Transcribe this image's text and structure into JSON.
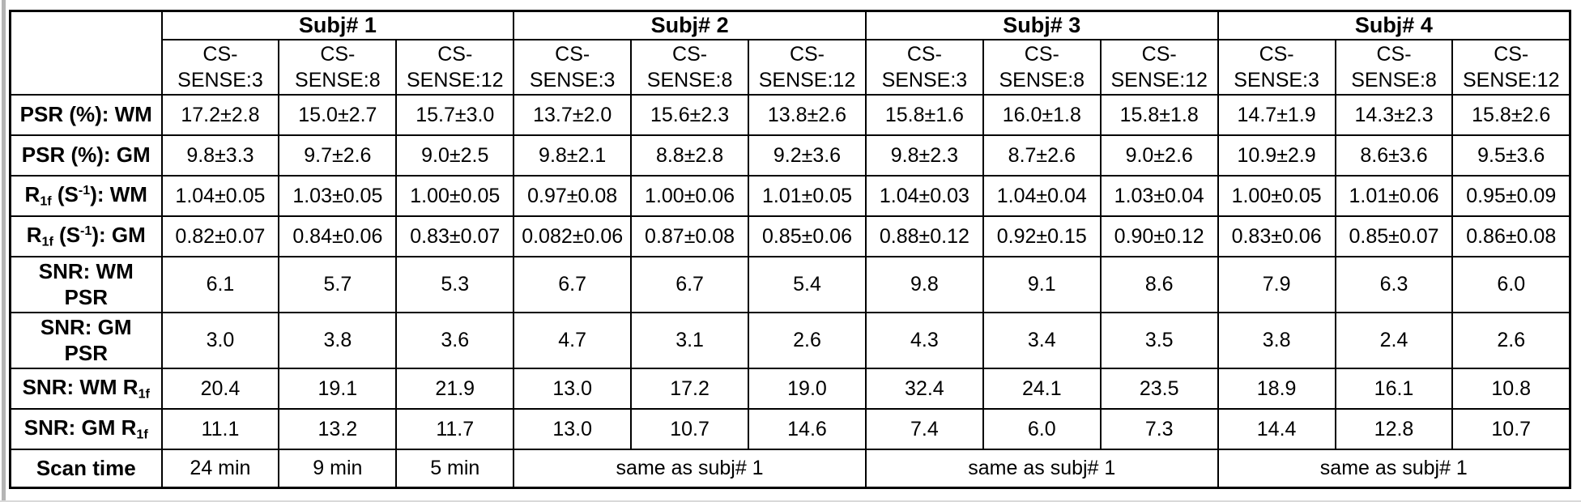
{
  "page": {
    "background_color": "#ffffff",
    "left_edge_color": "#b4b4b4",
    "bottom_edge_color": "#d9d9d9",
    "border_color": "#000000",
    "text_color": "#000000"
  },
  "table": {
    "corner_label": "",
    "subjects": [
      {
        "name": "Subj# 1",
        "columns": [
          "CS-SENSE:3",
          "CS-SENSE:8",
          "CS-SENSE:12"
        ]
      },
      {
        "name": "Subj# 2",
        "columns": [
          "CS-SENSE:3",
          "CS-SENSE:8",
          "CS-SENSE:12"
        ]
      },
      {
        "name": "Subj# 3",
        "columns": [
          "CS-SENSE:3",
          "CS-SENSE:8",
          "CS-SENSE:12"
        ]
      },
      {
        "name": "Subj# 4",
        "columns": [
          "CS-SENSE:3",
          "CS-SENSE:8",
          "CS-SENSE:12"
        ]
      }
    ],
    "rows": [
      {
        "id": "psr-wm",
        "label": [
          {
            "t": "PSR (%): WM"
          }
        ],
        "tall": false,
        "values": [
          "17.2±2.8",
          "15.0±2.7",
          "15.7±3.0",
          "13.7±2.0",
          "15.6±2.3",
          "13.8±2.6",
          "15.8±1.6",
          "16.0±1.8",
          "15.8±1.8",
          "14.7±1.9",
          "14.3±2.3",
          "15.8±2.6"
        ]
      },
      {
        "id": "psr-gm",
        "label": [
          {
            "t": "PSR (%): GM"
          }
        ],
        "tall": false,
        "values": [
          "9.8±3.3",
          "9.7±2.6",
          "9.0±2.5",
          "9.8±2.1",
          "8.8±2.8",
          "9.2±3.6",
          "9.8±2.3",
          "8.7±2.6",
          "9.0±2.6",
          "10.9±2.9",
          "8.6±3.6",
          "9.5±3.6"
        ]
      },
      {
        "id": "r1f-wm",
        "label": [
          {
            "t": "R"
          },
          {
            "t": "1f",
            "style": "sub"
          },
          {
            "t": " (S"
          },
          {
            "t": "-1",
            "style": "sup"
          },
          {
            "t": "): WM"
          }
        ],
        "tall": false,
        "values": [
          "1.04±0.05",
          "1.03±0.05",
          "1.00±0.05",
          "0.97±0.08",
          "1.00±0.06",
          "1.01±0.05",
          "1.04±0.03",
          "1.04±0.04",
          "1.03±0.04",
          "1.00±0.05",
          "1.01±0.06",
          "0.95±0.09"
        ]
      },
      {
        "id": "r1f-gm",
        "label": [
          {
            "t": "R"
          },
          {
            "t": "1f",
            "style": "sub"
          },
          {
            "t": " (S"
          },
          {
            "t": "-1",
            "style": "sup"
          },
          {
            "t": "): GM"
          }
        ],
        "tall": false,
        "values": [
          "0.82±0.07",
          "0.84±0.06",
          "0.83±0.07",
          "0.082±0.06",
          "0.87±0.08",
          "0.85±0.06",
          "0.88±0.12",
          "0.92±0.15",
          "0.90±0.12",
          "0.83±0.06",
          "0.85±0.07",
          "0.86±0.08"
        ]
      },
      {
        "id": "snr-wm-psr",
        "label": [
          {
            "t": "SNR: WM"
          },
          {
            "t": "PSR",
            "style": "br"
          }
        ],
        "tall": true,
        "values": [
          "6.1",
          "5.7",
          "5.3",
          "6.7",
          "6.7",
          "5.4",
          "9.8",
          "9.1",
          "8.6",
          "7.9",
          "6.3",
          "6.0"
        ]
      },
      {
        "id": "snr-gm-psr",
        "label": [
          {
            "t": "SNR: GM"
          },
          {
            "t": "PSR",
            "style": "br"
          }
        ],
        "tall": true,
        "values": [
          "3.0",
          "3.8",
          "3.6",
          "4.7",
          "3.1",
          "2.6",
          "4.3",
          "3.4",
          "3.5",
          "3.8",
          "2.4",
          "2.6"
        ]
      },
      {
        "id": "snr-wm-r1f",
        "label": [
          {
            "t": "SNR: WM R"
          },
          {
            "t": "1f",
            "style": "sub"
          }
        ],
        "tall": false,
        "values": [
          "20.4",
          "19.1",
          "21.9",
          "13.0",
          "17.2",
          "19.0",
          "32.4",
          "24.1",
          "23.5",
          "18.9",
          "16.1",
          "10.8"
        ]
      },
      {
        "id": "snr-gm-r1f",
        "label": [
          {
            "t": "SNR: GM R"
          },
          {
            "t": "1f",
            "style": "sub"
          }
        ],
        "tall": false,
        "values": [
          "11.1",
          "13.2",
          "11.7",
          "13.0",
          "10.7",
          "14.6",
          "7.4",
          "6.0",
          "7.3",
          "14.4",
          "12.8",
          "10.7"
        ]
      }
    ],
    "scan_time": {
      "label": [
        {
          "t": "Scan time"
        }
      ],
      "subject1_cells": [
        "24 min",
        "9 min",
        "5 min"
      ],
      "merged_cells": [
        {
          "text": "same as subj# 1",
          "colspan": 3
        },
        {
          "text": "same as subj# 1",
          "colspan": 3
        },
        {
          "text": "same as subj# 1",
          "colspan": 3
        }
      ]
    }
  }
}
